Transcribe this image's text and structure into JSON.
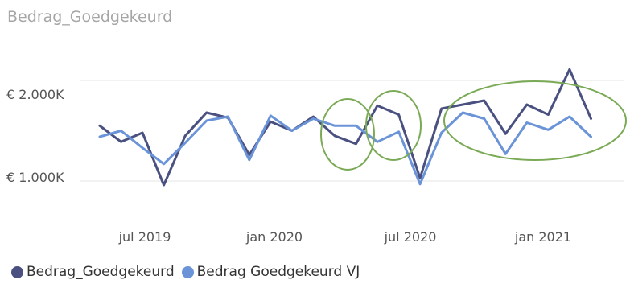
{
  "chart_data": {
    "type": "line",
    "title": "Bedrag_Goedgekeurd",
    "xlabel": "",
    "ylabel": "",
    "y_tick_values": [
      1000,
      2000
    ],
    "y_tick_labels": [
      "€ 1.000K",
      "€ 2.000K"
    ],
    "ylim": [
      600,
      2400
    ],
    "x_tick_labels": [
      "jul 2019",
      "jan 2020",
      "jul 2020",
      "jan 2021"
    ],
    "x_tick_values": [
      "2019-07",
      "2020-01",
      "2020-07",
      "2021-01"
    ],
    "x": [
      "2019-04",
      "2019-05",
      "2019-06",
      "2019-07",
      "2019-08",
      "2019-09",
      "2019-10",
      "2019-11",
      "2019-12",
      "2020-01",
      "2020-02",
      "2020-03",
      "2020-04",
      "2020-05",
      "2020-06",
      "2020-07",
      "2020-08",
      "2020-09",
      "2020-10",
      "2020-11",
      "2020-12",
      "2021-01",
      "2021-02",
      "2021-03",
      "2021-04"
    ],
    "xlim": [
      "2019-04",
      "2021-04"
    ],
    "grid": true,
    "legend_position": "bottom-left",
    "series": [
      {
        "name": "Bedrag_Goedgekeurd",
        "color": "#4a5180",
        "values": [
          1550,
          1390,
          1480,
          960,
          1450,
          1680,
          1630,
          1260,
          1590,
          1500,
          1640,
          1450,
          1370,
          1750,
          1660,
          1030,
          1720,
          1760,
          1800,
          1470,
          1760,
          1660,
          2110,
          1620,
          null
        ]
      },
      {
        "name": "Bedrag Goedgekeurd VJ",
        "color": "#6a93d8",
        "values": [
          1440,
          1500,
          1330,
          1170,
          1380,
          1600,
          1640,
          1210,
          1650,
          1500,
          1620,
          1550,
          1550,
          1390,
          1490,
          970,
          1480,
          1680,
          1620,
          1270,
          1580,
          1510,
          1640,
          1440,
          null
        ]
      }
    ]
  },
  "annotation_color": "#7aaa55"
}
